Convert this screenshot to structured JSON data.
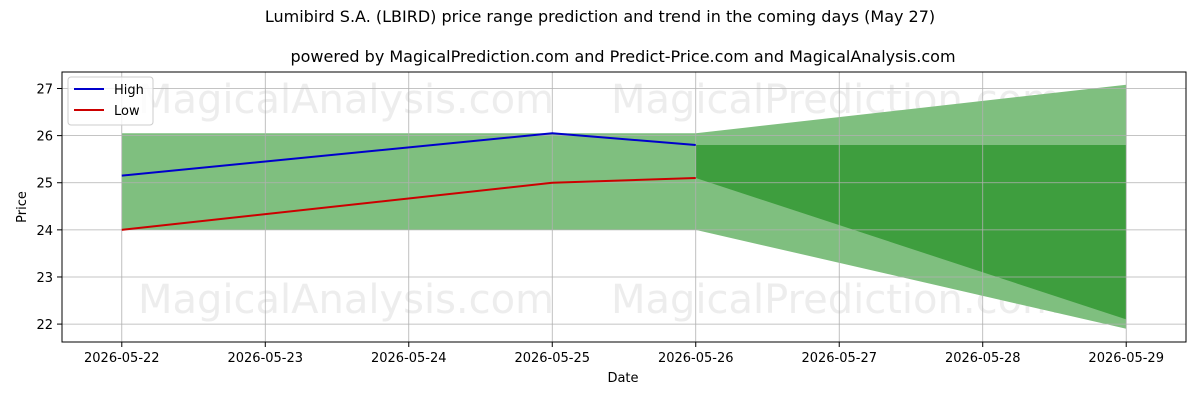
{
  "chart_data": {
    "type": "line",
    "title": "Lumibird S.A. (LBIRD) price range prediction and trend in the coming days (May 27)",
    "subtitle": "powered by MagicalPrediction.com and Predict-Price.com and MagicalAnalysis.com",
    "xlabel": "Date",
    "ylabel": "Price",
    "x_ticks": [
      "2026-05-22",
      "2026-05-23",
      "2026-05-24",
      "2026-05-25",
      "2026-05-26",
      "2026-05-27",
      "2026-05-28",
      "2026-05-29"
    ],
    "y_ticks": [
      22,
      23,
      24,
      25,
      26,
      27
    ],
    "xlim": [
      "2026-05-21 14:00",
      "2026-05-29 10:00"
    ],
    "ylim": [
      21.62,
      27.35
    ],
    "grid": true,
    "legend_position": "top-left",
    "series": [
      {
        "name": "High",
        "color": "#0000cc",
        "x": [
          "2026-05-22",
          "2026-05-25",
          "2026-05-26"
        ],
        "values": [
          25.15,
          26.05,
          25.8
        ]
      },
      {
        "name": "Low",
        "color": "#cc0000",
        "x": [
          "2026-05-22",
          "2026-05-25",
          "2026-05-26"
        ],
        "values": [
          24.0,
          25.0,
          25.1
        ]
      }
    ],
    "bands": [
      {
        "color": "#7fbf7f",
        "x": [
          "2026-05-22",
          "2026-05-26"
        ],
        "upper": [
          26.05,
          26.05
        ],
        "lower": [
          24.0,
          24.0
        ]
      },
      {
        "color": "#7fbf7f",
        "x": [
          "2026-05-26",
          "2026-05-29"
        ],
        "upper": [
          26.05,
          27.08
        ],
        "lower": [
          24.0,
          21.9
        ]
      },
      {
        "color": "#3e9e3e",
        "x": [
          "2026-05-26",
          "2026-05-29"
        ],
        "upper": [
          25.8,
          25.8
        ],
        "lower": [
          25.1,
          22.1
        ]
      }
    ],
    "watermarks": [
      "MagicalAnalysis.com",
      "MagicalPrediction.com",
      "MagicalAnalysis.com",
      "MagicalPrediction.com",
      "MagicalAnalysis.com",
      "MagicalPrediction.com"
    ]
  }
}
